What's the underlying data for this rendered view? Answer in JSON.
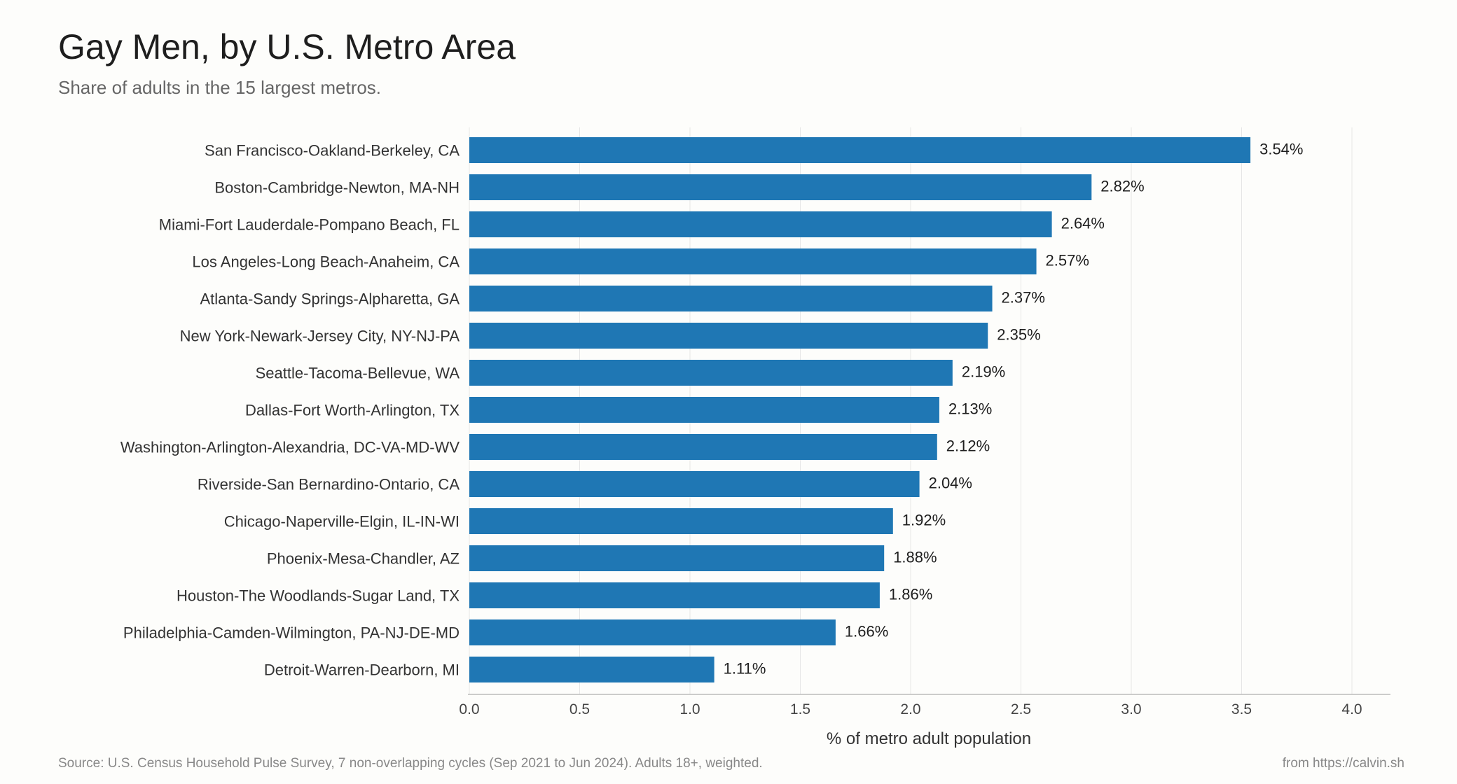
{
  "header": {
    "title": "Gay Men, by U.S. Metro Area",
    "subtitle": "Share of adults in the 15 largest metros."
  },
  "footer": {
    "source": "Source: U.S. Census Household Pulse Survey, 7 non-overlapping cycles (Sep 2021 to Jun 2024). Adults 18+, weighted.",
    "credit": "from https://calvin.sh"
  },
  "colors": {
    "bar": "#1f77b4",
    "grid": "#e6e6e6",
    "axis": "#bbbbbb"
  },
  "chart_data": {
    "type": "bar",
    "orientation": "horizontal",
    "title": "Gay Men, by U.S. Metro Area",
    "subtitle": "Share of adults in the 15 largest metros.",
    "xlabel": "% of metro adult population",
    "ylabel": "",
    "xlim": [
      0,
      4.0
    ],
    "xticks": [
      "0.0",
      "0.5",
      "1.0",
      "1.5",
      "2.0",
      "2.5",
      "3.0",
      "3.5",
      "4.0"
    ],
    "grid": true,
    "value_suffix": "%",
    "categories": [
      "San Francisco-Oakland-Berkeley, CA",
      "Boston-Cambridge-Newton, MA-NH",
      "Miami-Fort Lauderdale-Pompano Beach, FL",
      "Los Angeles-Long Beach-Anaheim, CA",
      "Atlanta-Sandy Springs-Alpharetta, GA",
      "New York-Newark-Jersey City, NY-NJ-PA",
      "Seattle-Tacoma-Bellevue, WA",
      "Dallas-Fort Worth-Arlington, TX",
      "Washington-Arlington-Alexandria, DC-VA-MD-WV",
      "Riverside-San Bernardino-Ontario, CA",
      "Chicago-Naperville-Elgin, IL-IN-WI",
      "Phoenix-Mesa-Chandler, AZ",
      "Houston-The Woodlands-Sugar Land, TX",
      "Philadelphia-Camden-Wilmington, PA-NJ-DE-MD",
      "Detroit-Warren-Dearborn, MI"
    ],
    "values": [
      3.54,
      2.82,
      2.64,
      2.57,
      2.37,
      2.35,
      2.19,
      2.13,
      2.12,
      2.04,
      1.92,
      1.88,
      1.86,
      1.66,
      1.11
    ],
    "value_labels": [
      "3.54%",
      "2.82%",
      "2.64%",
      "2.57%",
      "2.37%",
      "2.35%",
      "2.19%",
      "2.13%",
      "2.12%",
      "2.04%",
      "1.92%",
      "1.88%",
      "1.86%",
      "1.66%",
      "1.11%"
    ]
  }
}
